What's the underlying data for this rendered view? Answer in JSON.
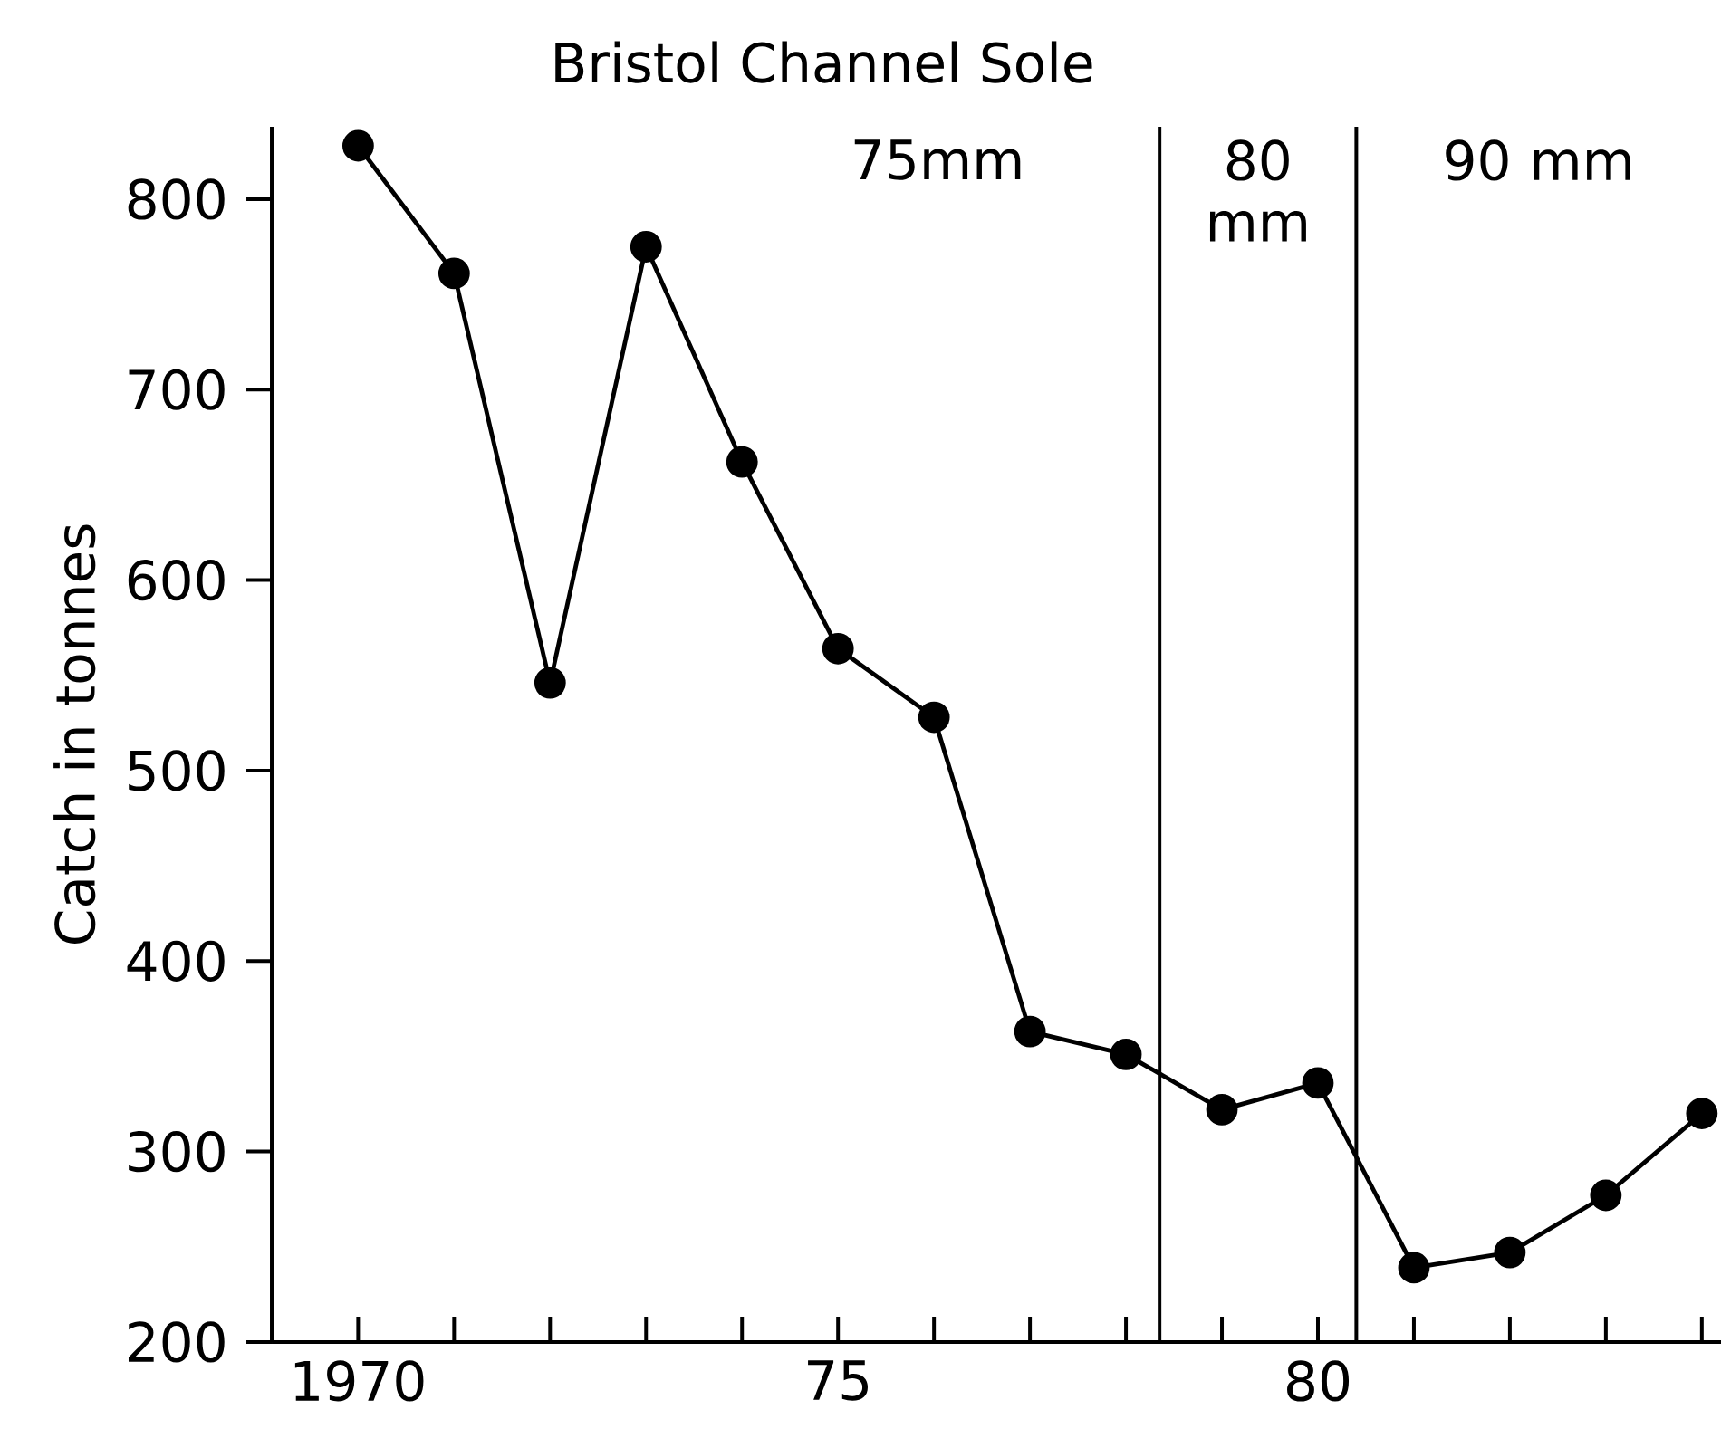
{
  "chart_data": {
    "type": "line",
    "title": "Bristol Channel Sole",
    "ylabel": "Catch in tonnes",
    "x": [
      1970,
      1971,
      1972,
      1973,
      1974,
      1975,
      1976,
      1977,
      1978,
      1979,
      1980,
      1981,
      1982,
      1983,
      1984
    ],
    "series": [
      {
        "color": "#000000",
        "values": [
          828,
          761,
          546,
          775,
          662,
          564,
          528,
          363,
          351,
          322,
          336,
          239,
          247,
          277,
          320
        ]
      }
    ],
    "xlim": [
      1969.1,
      1984.2
    ],
    "ylim": [
      200,
      838
    ],
    "xticks": [
      {
        "value": 1970,
        "label": "1970"
      },
      {
        "value": 1971,
        "label": null
      },
      {
        "value": 1972,
        "label": null
      },
      {
        "value": 1973,
        "label": null
      },
      {
        "value": 1974,
        "label": null
      },
      {
        "value": 1975,
        "label": "75"
      },
      {
        "value": 1976,
        "label": null
      },
      {
        "value": 1977,
        "label": null
      },
      {
        "value": 1978,
        "label": null
      },
      {
        "value": 1979,
        "label": null
      },
      {
        "value": 1980,
        "label": "80"
      },
      {
        "value": 1981,
        "label": null
      },
      {
        "value": 1982,
        "label": null
      },
      {
        "value": 1983,
        "label": null
      },
      {
        "value": 1984,
        "label": null
      }
    ],
    "yticks": [
      200,
      300,
      400,
      500,
      600,
      700,
      800
    ],
    "ref_lines": [
      {
        "axis": "x",
        "value": 1978.35,
        "color": "#000000"
      },
      {
        "axis": "x",
        "value": 1980.4,
        "color": "#000000"
      }
    ],
    "annotations": [
      "75mm",
      "80 mm",
      "90 mm"
    ],
    "marker": "circle",
    "line_style": "solid",
    "grid": false
  }
}
